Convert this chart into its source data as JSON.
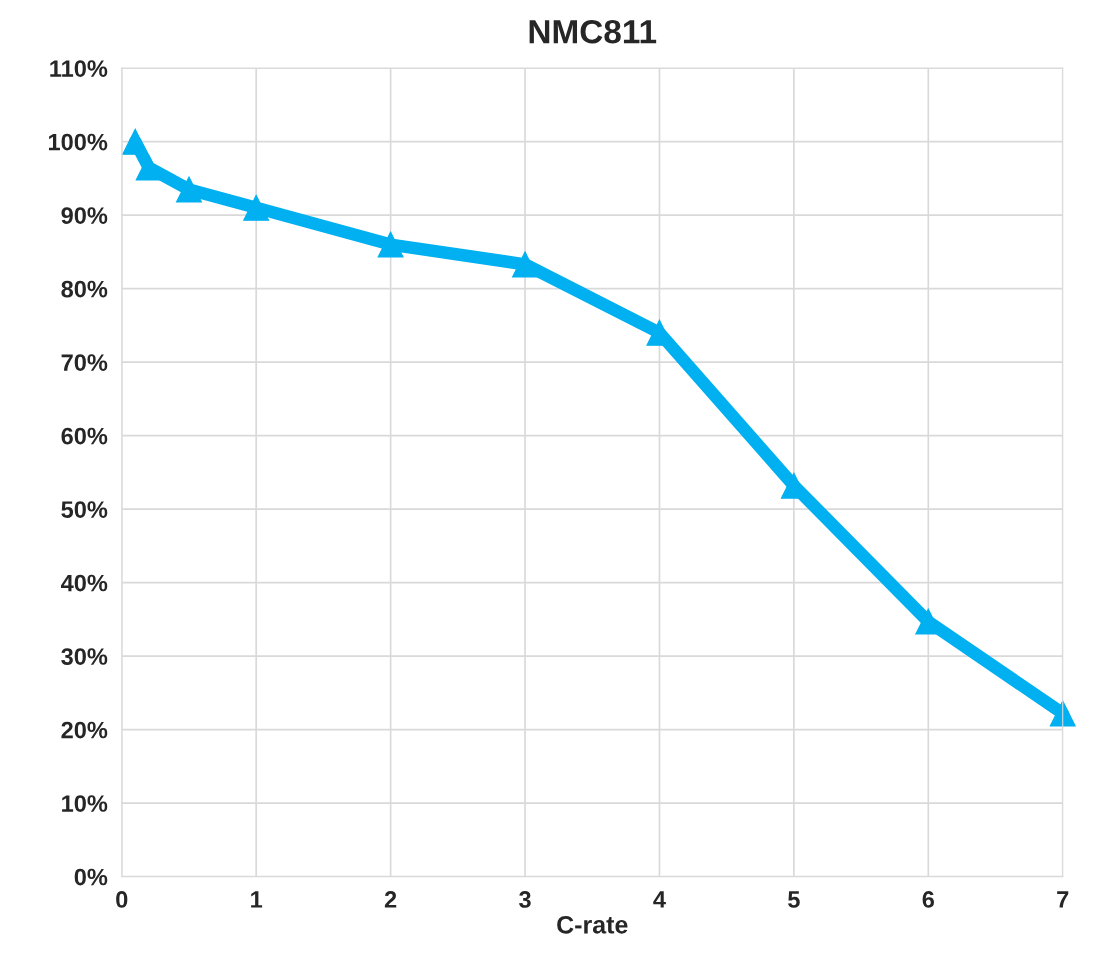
{
  "chart_data": {
    "type": "line",
    "title": "NMC811",
    "xlabel": "C-rate",
    "x": [
      0.1,
      0.2,
      0.5,
      1,
      2,
      3,
      4,
      5,
      6,
      7
    ],
    "series": [
      {
        "color": "#00b0f0",
        "values": [
          100,
          96.5,
          93.5,
          91,
          86,
          83.3,
          74,
          53.2,
          34.7,
          22.2
        ]
      }
    ],
    "xlim": [
      0,
      7
    ],
    "xticks": [
      0,
      1,
      2,
      3,
      4,
      5,
      6,
      7
    ],
    "ylim": [
      0,
      110
    ],
    "yticks": [
      {
        "value": 0,
        "label": "0%"
      },
      {
        "value": 10,
        "label": "10%"
      },
      {
        "value": 20,
        "label": "20%"
      },
      {
        "value": 30,
        "label": "30%"
      },
      {
        "value": 40,
        "label": "40%"
      },
      {
        "value": 50,
        "label": "50%"
      },
      {
        "value": 60,
        "label": "60%"
      },
      {
        "value": 70,
        "label": "70%"
      },
      {
        "value": 80,
        "label": "80%"
      },
      {
        "value": 90,
        "label": "90%"
      },
      {
        "value": 100,
        "label": "100%"
      },
      {
        "value": 110,
        "label": "110%"
      }
    ],
    "grid": true,
    "marker": "triangle",
    "line_style": "solid"
  }
}
